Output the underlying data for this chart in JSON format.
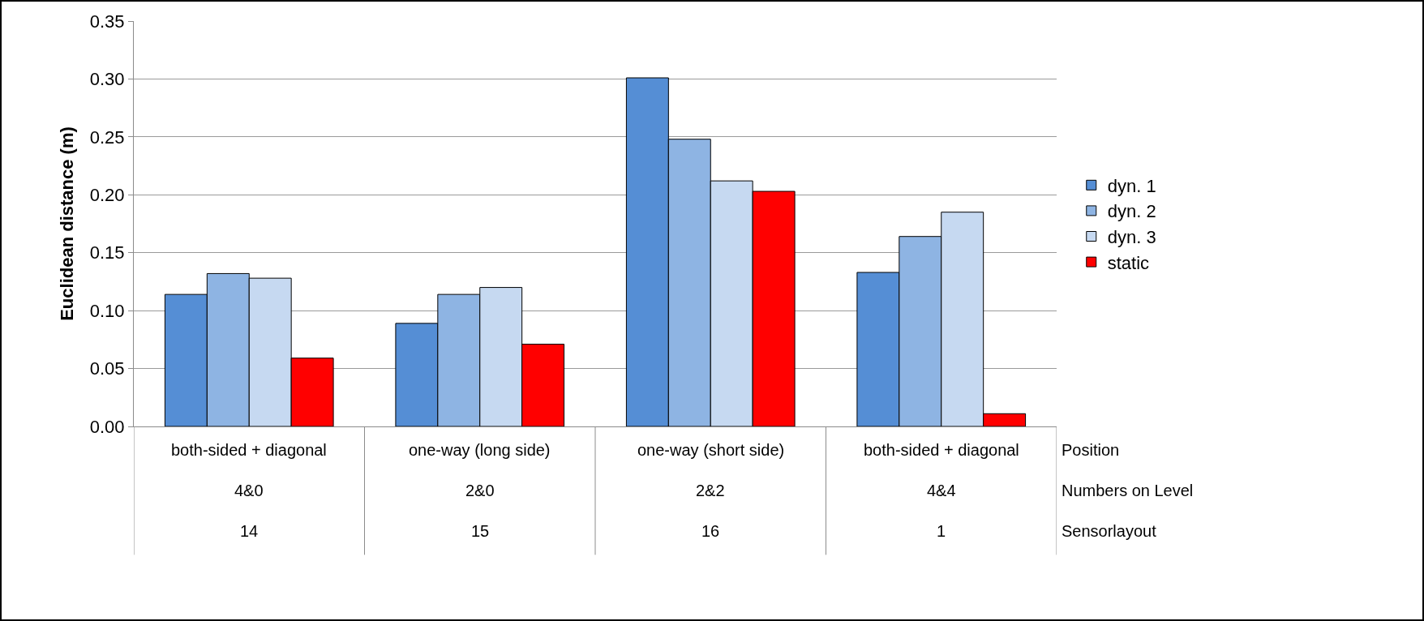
{
  "chart_data": {
    "type": "bar",
    "ylabel": "Euclidean distance (m)",
    "categories": [
      "both-sided + diagonal\n4&0\n14",
      "one-way (long side)\n2&0\n15",
      "one-way (short side)\n2&2\n16",
      "both-sided + diagonal\n4&4\n1"
    ],
    "series": [
      {
        "name": "dyn. 1",
        "color": "#558ed5",
        "values": [
          0.114,
          0.089,
          0.301,
          0.133
        ]
      },
      {
        "name": "dyn. 2",
        "color": "#8eb4e3",
        "values": [
          0.132,
          0.114,
          0.248,
          0.164
        ]
      },
      {
        "name": "dyn. 3",
        "color": "#c6d9f1",
        "values": [
          0.128,
          0.12,
          0.212,
          0.185
        ]
      },
      {
        "name": "static",
        "color": "#ff0000",
        "values": [
          0.059,
          0.071,
          0.203,
          0.011
        ]
      }
    ],
    "annotations": [
      "Position",
      "Numbers on Level",
      "Sensorlayout"
    ],
    "ylim": [
      0,
      0.35
    ],
    "yticks": [
      {
        "value": 0,
        "label": "0.00"
      },
      {
        "value": 0.05,
        "label": "0.05"
      },
      {
        "value": 0.1,
        "label": "0.10"
      },
      {
        "value": 0.15,
        "label": "0.15"
      },
      {
        "value": 0.2,
        "label": "0.20"
      },
      {
        "value": 0.25,
        "label": "0.25"
      },
      {
        "value": 0.3,
        "label": "0.30"
      },
      {
        "value": 0.35,
        "label": "0.35"
      }
    ],
    "grid": "y",
    "legend": "right"
  }
}
